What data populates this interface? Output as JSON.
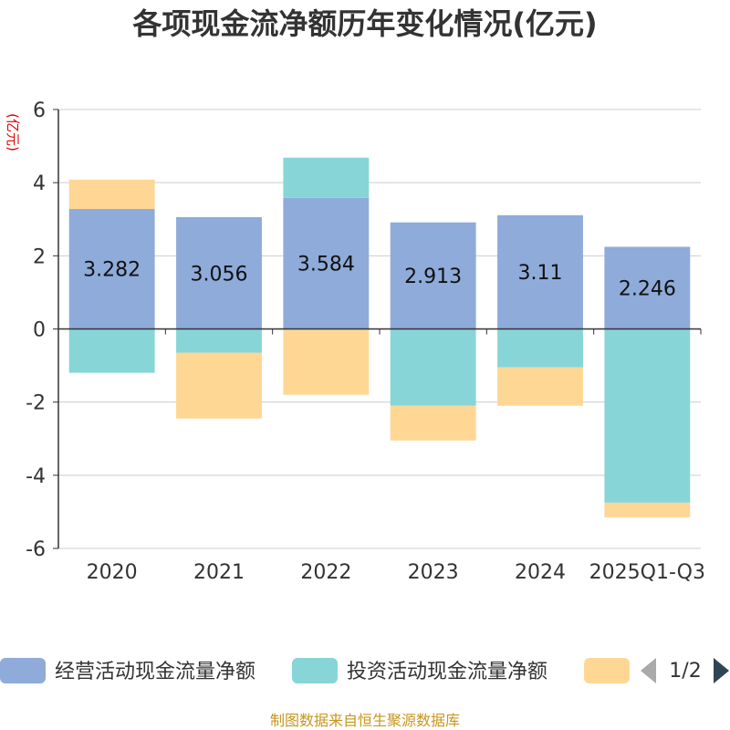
{
  "chart_data": {
    "type": "bar",
    "stacked": true,
    "title": "各项现金流净额历年变化情况(亿元)",
    "ylabel": "(亿元)",
    "categories": [
      "2020",
      "2021",
      "2022",
      "2023",
      "2024",
      "2025Q1-Q3"
    ],
    "ylim": [
      -6,
      6
    ],
    "yticks": [
      6,
      4,
      2,
      0,
      -2,
      -4,
      -6
    ],
    "grid": true,
    "series": [
      {
        "name": "经营活动现金流量净额",
        "color": "#8eabda",
        "values": [
          3.282,
          3.056,
          3.584,
          2.913,
          3.11,
          2.246
        ],
        "show_labels": true
      },
      {
        "name": "投资活动现金流量净额",
        "color": "#88d5d8",
        "values": [
          -1.2,
          -0.65,
          1.1,
          -2.1,
          -1.05,
          -4.75
        ],
        "show_labels": false
      },
      {
        "name": "",
        "color": "#fed795",
        "values": [
          0.8,
          -1.8,
          -1.8,
          -0.95,
          -1.05,
          -0.4
        ],
        "show_labels": false
      }
    ],
    "legend": {
      "position": "bottom",
      "page": "1/2"
    }
  },
  "source": "制图数据来自恒生聚源数据库"
}
